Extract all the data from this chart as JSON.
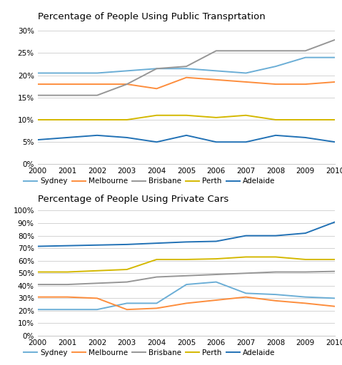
{
  "years": [
    2000,
    2001,
    2002,
    2003,
    2004,
    2005,
    2006,
    2007,
    2008,
    2009,
    2010
  ],
  "public": {
    "Sydney": [
      20.5,
      20.5,
      20.5,
      21.0,
      21.5,
      21.5,
      21.0,
      20.5,
      22.0,
      24.0,
      24.0
    ],
    "Melbourne": [
      18.0,
      18.0,
      18.0,
      18.0,
      17.0,
      19.5,
      19.0,
      18.5,
      18.0,
      18.0,
      18.5
    ],
    "Brisbane": [
      15.5,
      15.5,
      15.5,
      18.0,
      21.5,
      22.0,
      25.5,
      25.5,
      25.5,
      25.5,
      28.0
    ],
    "Perth": [
      10.0,
      10.0,
      10.0,
      10.0,
      11.0,
      11.0,
      10.5,
      11.0,
      10.0,
      10.0,
      10.0
    ],
    "Adelaide": [
      5.5,
      6.0,
      6.5,
      6.0,
      5.0,
      6.5,
      5.0,
      5.0,
      6.5,
      6.0,
      5.0
    ]
  },
  "private": {
    "Sydney": [
      21.0,
      21.0,
      21.0,
      26.0,
      26.0,
      41.0,
      43.0,
      34.0,
      33.0,
      31.0,
      30.0
    ],
    "Melbourne": [
      31.0,
      31.0,
      30.0,
      21.0,
      22.0,
      26.0,
      28.5,
      31.0,
      28.0,
      26.0,
      23.5
    ],
    "Brisbane": [
      41.0,
      41.0,
      42.0,
      43.0,
      47.0,
      48.0,
      49.0,
      50.0,
      51.0,
      51.0,
      51.5
    ],
    "Perth": [
      51.0,
      51.0,
      52.0,
      53.0,
      61.0,
      61.0,
      61.5,
      63.0,
      63.0,
      61.0,
      61.0
    ],
    "Adelaide": [
      71.5,
      72.0,
      72.5,
      73.0,
      74.0,
      75.0,
      75.5,
      80.0,
      80.0,
      82.0,
      91.0
    ]
  },
  "colors": {
    "Sydney": "#6baed6",
    "Melbourne": "#fd8d3c",
    "Brisbane": "#969696",
    "Perth": "#d4b800",
    "Adelaide": "#2171b5"
  },
  "title_public": "Percentage of People Using Public Transprtation",
  "title_private": "Percentage of People Using Private Cars",
  "background": "#ffffff",
  "grid_color": "#cccccc",
  "line_width": 1.4,
  "font_size_title": 9.5,
  "font_size_tick": 7.5,
  "font_size_legend": 7.5
}
